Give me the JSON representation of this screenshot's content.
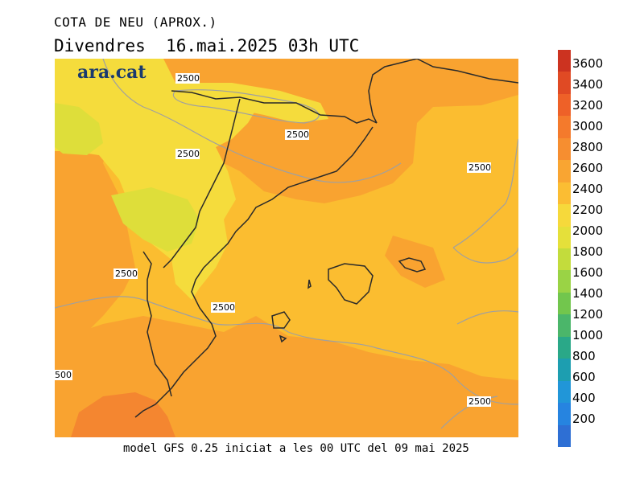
{
  "header": {
    "title": "COTA DE NEU (APROX.)",
    "subtitle": "Divendres  16.mai.2025 03h UTC"
  },
  "logo": {
    "text": "ara.cat",
    "color": "#1a3a6e"
  },
  "footer": {
    "text": "model GFS 0.25 iniciat a les 00 UTC del 09 mai 2025"
  },
  "map": {
    "contour_labels": [
      "2500",
      "2500",
      "2500",
      "2500",
      "2500",
      "2500",
      "500",
      "2500"
    ],
    "colors": {
      "zone_2000": "#dede3a",
      "zone_2200": "#f5dc3c",
      "zone_2400": "#fbbd30",
      "zone_2600": "#f9a330",
      "zone_2800": "#f48630",
      "coastline": "#2a2a2a",
      "contour": "#a0a0a0"
    }
  },
  "legend": {
    "labels": [
      "3600",
      "3400",
      "3200",
      "3000",
      "2800",
      "2600",
      "2400",
      "2200",
      "2000",
      "1800",
      "1600",
      "1400",
      "1200",
      "1000",
      "800",
      "600",
      "400",
      "200"
    ],
    "colors": [
      "#cc3320",
      "#e04a24",
      "#ee6128",
      "#f47a2c",
      "#f68e30",
      "#f9a532",
      "#fbbd33",
      "#f6d93b",
      "#e5e03a",
      "#c3dc3c",
      "#9ad345",
      "#72c64d",
      "#4bb66a",
      "#2aa888",
      "#1d9eb0",
      "#2196d8",
      "#2684e0",
      "#2e6fd4"
    ]
  }
}
